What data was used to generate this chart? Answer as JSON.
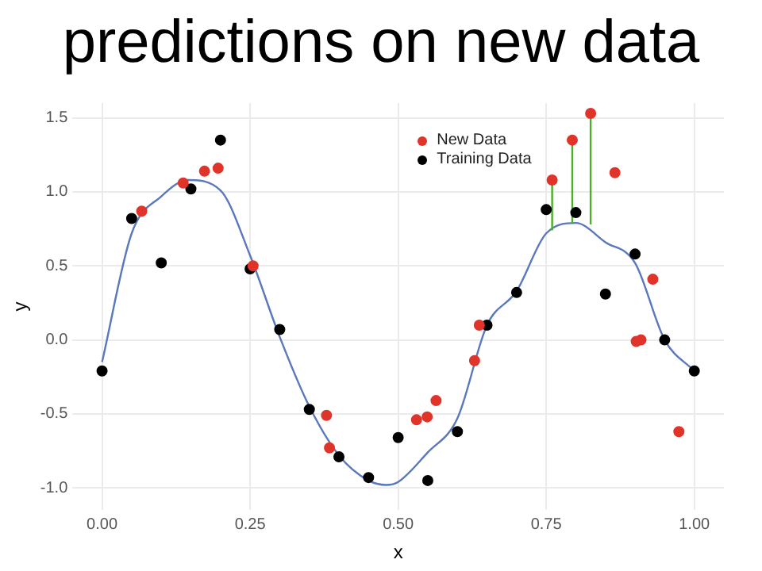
{
  "chart_data": {
    "type": "scatter",
    "title": "predictions on new data",
    "xlabel": "x",
    "ylabel": "y",
    "xlim": [
      -0.05,
      1.05
    ],
    "xticks": [
      {
        "value": 0,
        "label": "0.00"
      },
      {
        "value": 0.25,
        "label": "0.25"
      },
      {
        "value": 0.5,
        "label": "0.50"
      },
      {
        "value": 0.75,
        "label": "0.75"
      },
      {
        "value": 1,
        "label": "1.00"
      }
    ],
    "ylim": [
      -1.15,
      1.6
    ],
    "yticks": [
      {
        "value": -1,
        "label": "-1.0"
      },
      {
        "value": -0.5,
        "label": "-0.5"
      },
      {
        "value": 0,
        "label": "0.0"
      },
      {
        "value": 0.5,
        "label": "0.5"
      },
      {
        "value": 1,
        "label": "1.0"
      },
      {
        "value": 1.5,
        "label": "1.5"
      }
    ],
    "grid": true,
    "legend": "top",
    "series": [
      {
        "type": "line",
        "marker": "none",
        "color": "#4caf28",
        "x": [
          0.76,
          0.76
        ],
        "values": [
          0.74,
          1.08
        ]
      },
      {
        "type": "line",
        "marker": "none",
        "color": "#4caf28",
        "x": [
          0.794,
          0.794
        ],
        "values": [
          0.79,
          1.35
        ]
      },
      {
        "type": "line",
        "marker": "none",
        "color": "#4caf28",
        "x": [
          0.825,
          0.825
        ],
        "values": [
          0.78,
          1.53
        ]
      },
      {
        "type": "line",
        "marker": "none",
        "color": "#5a78bd",
        "x": [
          0,
          0.05,
          0.1,
          0.145,
          0.2,
          0.25,
          0.3,
          0.35,
          0.4,
          0.45,
          0.48,
          0.5,
          0.55,
          0.6,
          0.65,
          0.7,
          0.75,
          0.8,
          0.85,
          0.9,
          0.95,
          1.0
        ],
        "values": [
          -0.15,
          0.72,
          0.97,
          1.08,
          1.01,
          0.57,
          0.02,
          -0.45,
          -0.78,
          -0.95,
          -0.98,
          -0.96,
          -0.76,
          -0.53,
          0.1,
          0.33,
          0.72,
          0.79,
          0.66,
          0.52,
          0.0,
          -0.21
        ]
      },
      {
        "marker": "circle",
        "name": "New Data",
        "color": "#e0342a",
        "x": [
          0.067,
          0.137,
          0.173,
          0.196,
          0.255,
          0.379,
          0.384,
          0.531,
          0.549,
          0.564,
          0.629,
          0.637,
          0.76,
          0.794,
          0.825,
          0.866,
          0.902,
          0.91,
          0.93,
          0.974
        ],
        "values": [
          0.87,
          1.06,
          1.14,
          1.16,
          0.5,
          -0.51,
          -0.73,
          -0.54,
          -0.52,
          -0.41,
          -0.14,
          0.1,
          1.08,
          1.35,
          1.53,
          1.13,
          -0.01,
          0.0,
          0.41,
          -0.62
        ]
      },
      {
        "marker": "circle",
        "name": "Training Data",
        "color": "#000000",
        "x": [
          0,
          0.05,
          0.1,
          0.15,
          0.2,
          0.25,
          0.3,
          0.35,
          0.4,
          0.45,
          0.5,
          0.55,
          0.6,
          0.65,
          0.7,
          0.75,
          0.8,
          0.85,
          0.9,
          0.95,
          1.0
        ],
        "values": [
          -0.21,
          0.82,
          0.52,
          1.02,
          1.35,
          0.48,
          0.07,
          -0.47,
          -0.79,
          -0.93,
          -0.66,
          -0.95,
          -0.62,
          0.1,
          0.32,
          0.88,
          0.86,
          0.31,
          0.58,
          0.0,
          -0.21
        ]
      }
    ]
  }
}
